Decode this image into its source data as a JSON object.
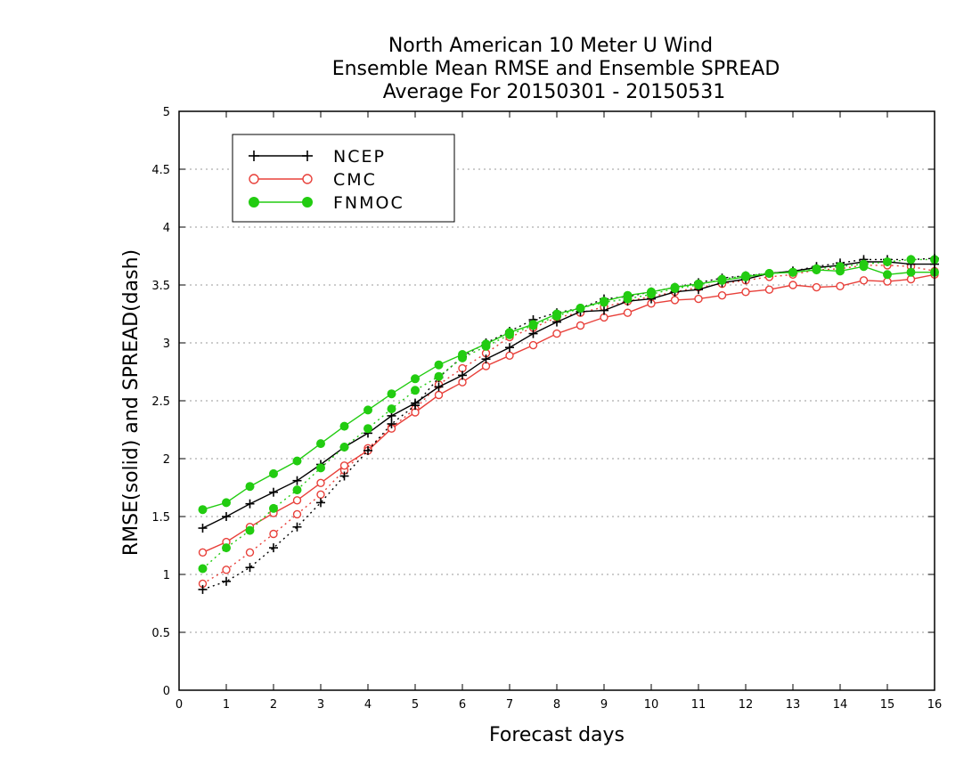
{
  "chart_data": {
    "type": "line",
    "title": [
      "North American 10 Meter U Wind",
      "Ensemble Mean RMSE and Ensemble SPREAD",
      "Average For 20150301 - 20150531"
    ],
    "xlabel": "Forecast days",
    "ylabel": "RMSE(solid) and SPREAD(dash)",
    "xlim": [
      0,
      16
    ],
    "ylim": [
      0,
      5
    ],
    "xticks": [
      "0",
      "1",
      "2",
      "3",
      "4",
      "5",
      "6",
      "7",
      "8",
      "9",
      "10",
      "11",
      "12",
      "13",
      "14",
      "15",
      "16"
    ],
    "yticks": [
      "0",
      "0.5",
      "1",
      "1.5",
      "2",
      "2.5",
      "3",
      "3.5",
      "4",
      "4.5",
      "5"
    ],
    "grid": true,
    "legend_position": "top-left",
    "x": [
      0.5,
      1,
      1.5,
      2,
      2.5,
      3,
      3.5,
      4,
      4.5,
      5,
      5.5,
      6,
      6.5,
      7,
      7.5,
      8,
      8.5,
      9,
      9.5,
      10,
      10.5,
      11,
      11.5,
      12,
      12.5,
      13,
      13.5,
      14,
      14.5,
      15,
      15.5,
      16
    ],
    "series": [
      {
        "name": "NCEP",
        "color": "#000000",
        "marker": "plus",
        "rmse": [
          1.4,
          1.5,
          1.61,
          1.71,
          1.81,
          1.95,
          2.1,
          2.22,
          2.37,
          2.48,
          2.62,
          2.72,
          2.86,
          2.96,
          3.08,
          3.18,
          3.27,
          3.28,
          3.36,
          3.38,
          3.44,
          3.46,
          3.52,
          3.55,
          3.6,
          3.62,
          3.65,
          3.67,
          3.7,
          3.7,
          3.68,
          3.68
        ],
        "spread": [
          0.87,
          0.94,
          1.06,
          1.23,
          1.41,
          1.62,
          1.85,
          2.07,
          2.3,
          2.46,
          2.7,
          2.88,
          3.0,
          3.1,
          3.2,
          3.26,
          3.3,
          3.38,
          3.4,
          3.44,
          3.48,
          3.52,
          3.56,
          3.58,
          3.6,
          3.62,
          3.66,
          3.69,
          3.72,
          3.72,
          3.72,
          3.73
        ]
      },
      {
        "name": "CMC",
        "color": "#e8403a",
        "marker": "circle-open",
        "rmse": [
          1.19,
          1.28,
          1.41,
          1.53,
          1.64,
          1.79,
          1.94,
          2.07,
          2.26,
          2.4,
          2.55,
          2.66,
          2.8,
          2.89,
          2.98,
          3.08,
          3.15,
          3.22,
          3.26,
          3.34,
          3.37,
          3.38,
          3.41,
          3.44,
          3.46,
          3.5,
          3.48,
          3.49,
          3.54,
          3.53,
          3.55,
          3.59
        ],
        "spread": [
          0.92,
          1.04,
          1.19,
          1.35,
          1.52,
          1.69,
          1.9,
          2.09,
          2.27,
          2.43,
          2.64,
          2.78,
          2.91,
          3.05,
          3.13,
          3.22,
          3.26,
          3.31,
          3.36,
          3.4,
          3.44,
          3.48,
          3.51,
          3.54,
          3.57,
          3.59,
          3.63,
          3.64,
          3.67,
          3.67,
          3.66,
          3.62
        ]
      },
      {
        "name": "FNMOC",
        "color": "#22cc11",
        "marker": "circle-filled",
        "rmse": [
          1.56,
          1.62,
          1.76,
          1.87,
          1.98,
          2.13,
          2.28,
          2.42,
          2.56,
          2.69,
          2.81,
          2.9,
          2.99,
          3.09,
          3.16,
          3.25,
          3.3,
          3.36,
          3.41,
          3.44,
          3.48,
          3.51,
          3.54,
          3.57,
          3.6,
          3.61,
          3.63,
          3.62,
          3.66,
          3.59,
          3.61,
          3.61
        ],
        "spread": [
          1.05,
          1.23,
          1.38,
          1.57,
          1.73,
          1.92,
          2.1,
          2.26,
          2.43,
          2.59,
          2.71,
          2.87,
          2.97,
          3.07,
          3.15,
          3.23,
          3.3,
          3.35,
          3.38,
          3.42,
          3.47,
          3.5,
          3.55,
          3.58,
          3.6,
          3.61,
          3.64,
          3.66,
          3.68,
          3.7,
          3.72,
          3.72
        ]
      }
    ]
  }
}
